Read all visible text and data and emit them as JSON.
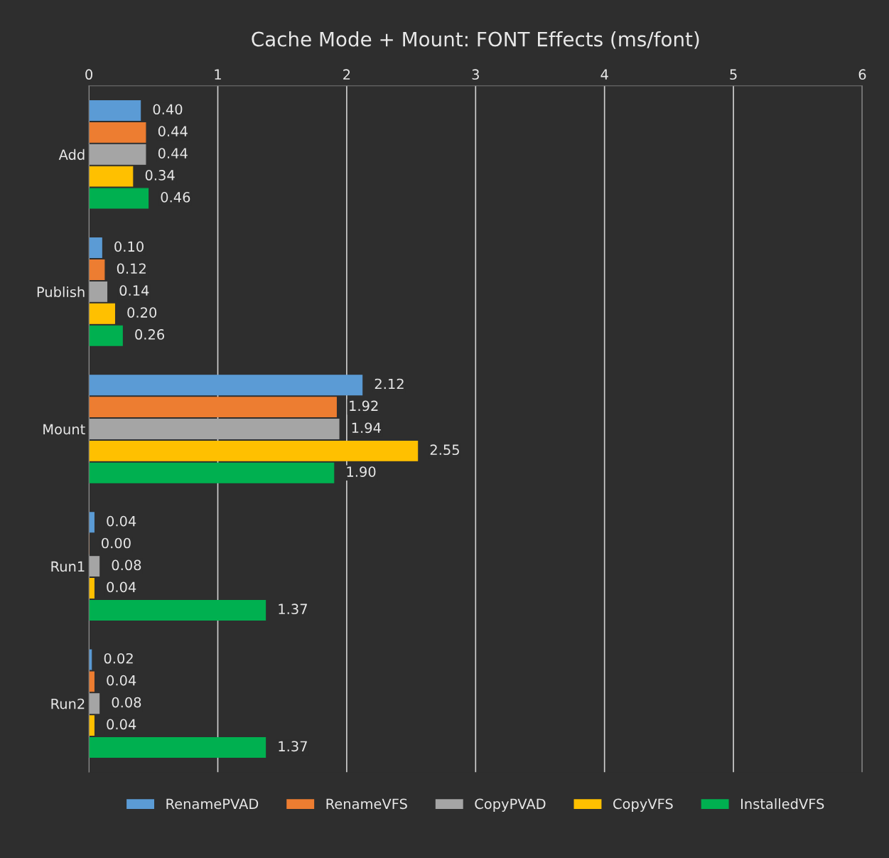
{
  "chart_data": {
    "type": "bar",
    "orientation": "horizontal",
    "title": "Cache Mode + Mount: FONT Effects (ms/font)",
    "categories": [
      "Add",
      "Publish",
      "Mount",
      "Run1",
      "Run2"
    ],
    "series": [
      {
        "name": "RenamePVAD",
        "color": "#5b9bd5",
        "values": [
          0.4,
          0.1,
          2.12,
          0.04,
          0.02
        ],
        "value_labels": [
          "0.40",
          "0.10",
          "2.12",
          "0.04",
          "0.02"
        ]
      },
      {
        "name": "RenameVFS",
        "color": "#ed7d31",
        "values": [
          0.44,
          0.12,
          1.92,
          0.0,
          0.04
        ],
        "value_labels": [
          "0.44",
          "0.12",
          "1.92",
          "0.00",
          "0.04"
        ]
      },
      {
        "name": "CopyPVAD",
        "color": "#a5a5a5",
        "values": [
          0.44,
          0.14,
          1.94,
          0.08,
          0.08
        ],
        "value_labels": [
          "0.44",
          "0.14",
          "1.94",
          "0.08",
          "0.08"
        ]
      },
      {
        "name": "CopyVFS",
        "color": "#ffc000",
        "values": [
          0.34,
          0.2,
          2.55,
          0.04,
          0.04
        ],
        "value_labels": [
          "0.34",
          "0.20",
          "2.55",
          "0.04",
          "0.04"
        ]
      },
      {
        "name": "InstalledVFS",
        "color": "#00b050",
        "values": [
          0.46,
          0.26,
          1.9,
          1.37,
          1.37
        ],
        "value_labels": [
          "0.46",
          "0.26",
          "1.90",
          "1.37",
          "1.37"
        ]
      }
    ],
    "xlim": [
      0,
      6
    ],
    "xticks": [
      0,
      1,
      2,
      3,
      4,
      5,
      6
    ],
    "grid": "x",
    "legend": "bottom"
  }
}
